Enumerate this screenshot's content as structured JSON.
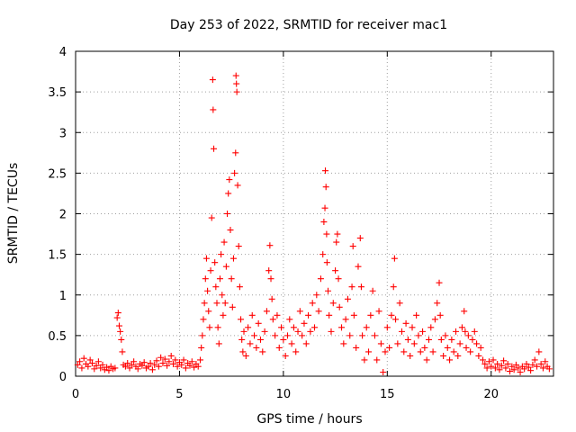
{
  "chart_data": {
    "type": "scatter",
    "title": "Day 253 of 2022, SRMTID for receiver mac1",
    "xlabel": "GPS time / hours",
    "ylabel": "SRMTID / TECUs",
    "xlim": [
      0,
      23
    ],
    "ylim": [
      0,
      4
    ],
    "xticks": [
      0,
      5,
      10,
      15,
      20
    ],
    "xtick_labels": [
      "0",
      "5",
      "10",
      "15",
      "20"
    ],
    "yticks": [
      0,
      0.5,
      1,
      1.5,
      2,
      2.5,
      3,
      3.5,
      4
    ],
    "ytick_labels": [
      "0",
      "0.5",
      "1",
      "1.5",
      "2",
      "2.5",
      "3",
      "3.5",
      "4"
    ],
    "grid": true,
    "marker": "+",
    "color": "#ff0000",
    "series": [
      {
        "name": "SRMTID",
        "points": [
          [
            0.1,
            0.14
          ],
          [
            0.2,
            0.18
          ],
          [
            0.3,
            0.1
          ],
          [
            0.4,
            0.22
          ],
          [
            0.5,
            0.15
          ],
          [
            0.6,
            0.12
          ],
          [
            0.7,
            0.2
          ],
          [
            0.8,
            0.16
          ],
          [
            0.9,
            0.09
          ],
          [
            1.0,
            0.13
          ],
          [
            1.1,
            0.18
          ],
          [
            1.2,
            0.1
          ],
          [
            1.3,
            0.14
          ],
          [
            1.4,
            0.08
          ],
          [
            1.5,
            0.11
          ],
          [
            1.6,
            0.07
          ],
          [
            1.7,
            0.12
          ],
          [
            1.8,
            0.09
          ],
          [
            1.9,
            0.1
          ],
          [
            2.0,
            0.72
          ],
          [
            2.05,
            0.78
          ],
          [
            2.1,
            0.62
          ],
          [
            2.15,
            0.55
          ],
          [
            2.2,
            0.45
          ],
          [
            2.25,
            0.3
          ],
          [
            2.3,
            0.14
          ],
          [
            2.4,
            0.12
          ],
          [
            2.5,
            0.16
          ],
          [
            2.6,
            0.1
          ],
          [
            2.7,
            0.14
          ],
          [
            2.8,
            0.18
          ],
          [
            2.9,
            0.12
          ],
          [
            3.0,
            0.09
          ],
          [
            3.1,
            0.15
          ],
          [
            3.2,
            0.13
          ],
          [
            3.3,
            0.17
          ],
          [
            3.4,
            0.1
          ],
          [
            3.5,
            0.12
          ],
          [
            3.6,
            0.16
          ],
          [
            3.7,
            0.08
          ],
          [
            3.8,
            0.14
          ],
          [
            3.9,
            0.19
          ],
          [
            4.0,
            0.12
          ],
          [
            4.1,
            0.23
          ],
          [
            4.2,
            0.16
          ],
          [
            4.3,
            0.21
          ],
          [
            4.4,
            0.13
          ],
          [
            4.5,
            0.18
          ],
          [
            4.6,
            0.25
          ],
          [
            4.7,
            0.15
          ],
          [
            4.8,
            0.2
          ],
          [
            4.9,
            0.12
          ],
          [
            5.0,
            0.17
          ],
          [
            5.1,
            0.14
          ],
          [
            5.2,
            0.2
          ],
          [
            5.3,
            0.1
          ],
          [
            5.4,
            0.16
          ],
          [
            5.5,
            0.13
          ],
          [
            5.6,
            0.18
          ],
          [
            5.7,
            0.11
          ],
          [
            5.8,
            0.15
          ],
          [
            5.9,
            0.12
          ],
          [
            6.0,
            0.2
          ],
          [
            6.05,
            0.35
          ],
          [
            6.1,
            0.5
          ],
          [
            6.15,
            0.7
          ],
          [
            6.2,
            0.9
          ],
          [
            6.25,
            1.2
          ],
          [
            6.3,
            1.45
          ],
          [
            6.35,
            1.05
          ],
          [
            6.4,
            0.8
          ],
          [
            6.45,
            0.6
          ],
          [
            6.5,
            1.3
          ],
          [
            6.55,
            1.95
          ],
          [
            6.6,
            3.65
          ],
          [
            6.62,
            3.28
          ],
          [
            6.65,
            2.8
          ],
          [
            6.7,
            1.4
          ],
          [
            6.75,
            1.1
          ],
          [
            6.8,
            0.9
          ],
          [
            6.85,
            0.6
          ],
          [
            6.9,
            0.4
          ],
          [
            6.95,
            1.2
          ],
          [
            7.0,
            1.5
          ],
          [
            7.05,
            1.0
          ],
          [
            7.1,
            0.75
          ],
          [
            7.15,
            1.65
          ],
          [
            7.2,
            0.9
          ],
          [
            7.25,
            1.35
          ],
          [
            7.3,
            2.0
          ],
          [
            7.35,
            2.25
          ],
          [
            7.4,
            2.42
          ],
          [
            7.45,
            1.8
          ],
          [
            7.5,
            1.2
          ],
          [
            7.55,
            0.85
          ],
          [
            7.6,
            1.45
          ],
          [
            7.65,
            2.5
          ],
          [
            7.7,
            2.75
          ],
          [
            7.72,
            3.7
          ],
          [
            7.74,
            3.6
          ],
          [
            7.76,
            3.5
          ],
          [
            7.8,
            2.35
          ],
          [
            7.85,
            1.6
          ],
          [
            7.9,
            1.1
          ],
          [
            7.95,
            0.7
          ],
          [
            8.0,
            0.45
          ],
          [
            8.05,
            0.3
          ],
          [
            8.1,
            0.55
          ],
          [
            8.2,
            0.25
          ],
          [
            8.3,
            0.6
          ],
          [
            8.4,
            0.4
          ],
          [
            8.5,
            0.75
          ],
          [
            8.6,
            0.5
          ],
          [
            8.7,
            0.35
          ],
          [
            8.8,
            0.65
          ],
          [
            8.9,
            0.45
          ],
          [
            9.0,
            0.3
          ],
          [
            9.1,
            0.55
          ],
          [
            9.2,
            0.8
          ],
          [
            9.3,
            1.3
          ],
          [
            9.35,
            1.61
          ],
          [
            9.4,
            1.2
          ],
          [
            9.45,
            0.95
          ],
          [
            9.5,
            0.7
          ],
          [
            9.6,
            0.5
          ],
          [
            9.7,
            0.75
          ],
          [
            9.8,
            0.35
          ],
          [
            9.9,
            0.6
          ],
          [
            10.0,
            0.45
          ],
          [
            10.1,
            0.25
          ],
          [
            10.2,
            0.5
          ],
          [
            10.3,
            0.7
          ],
          [
            10.4,
            0.4
          ],
          [
            10.5,
            0.6
          ],
          [
            10.6,
            0.3
          ],
          [
            10.7,
            0.55
          ],
          [
            10.8,
            0.8
          ],
          [
            10.9,
            0.5
          ],
          [
            11.0,
            0.65
          ],
          [
            11.1,
            0.4
          ],
          [
            11.2,
            0.75
          ],
          [
            11.3,
            0.55
          ],
          [
            11.4,
            0.9
          ],
          [
            11.5,
            0.6
          ],
          [
            11.6,
            1.0
          ],
          [
            11.7,
            0.8
          ],
          [
            11.8,
            1.2
          ],
          [
            11.9,
            1.5
          ],
          [
            11.95,
            1.9
          ],
          [
            12.0,
            2.07
          ],
          [
            12.02,
            2.53
          ],
          [
            12.05,
            2.33
          ],
          [
            12.08,
            1.75
          ],
          [
            12.1,
            1.4
          ],
          [
            12.15,
            1.05
          ],
          [
            12.2,
            0.75
          ],
          [
            12.3,
            0.55
          ],
          [
            12.4,
            0.9
          ],
          [
            12.5,
            1.3
          ],
          [
            12.55,
            1.65
          ],
          [
            12.6,
            1.75
          ],
          [
            12.65,
            1.2
          ],
          [
            12.7,
            0.85
          ],
          [
            12.8,
            0.6
          ],
          [
            12.9,
            0.4
          ],
          [
            13.0,
            0.7
          ],
          [
            13.1,
            0.95
          ],
          [
            13.2,
            0.5
          ],
          [
            13.3,
            1.1
          ],
          [
            13.35,
            1.6
          ],
          [
            13.4,
            0.75
          ],
          [
            13.5,
            0.35
          ],
          [
            13.6,
            1.35
          ],
          [
            13.7,
            1.7
          ],
          [
            13.75,
            1.1
          ],
          [
            13.8,
            0.5
          ],
          [
            13.9,
            0.2
          ],
          [
            14.0,
            0.6
          ],
          [
            14.1,
            0.3
          ],
          [
            14.2,
            0.75
          ],
          [
            14.3,
            1.05
          ],
          [
            14.4,
            0.5
          ],
          [
            14.5,
            0.2
          ],
          [
            14.6,
            0.8
          ],
          [
            14.7,
            0.4
          ],
          [
            14.8,
            0.05
          ],
          [
            14.9,
            0.3
          ],
          [
            15.0,
            0.6
          ],
          [
            15.1,
            0.35
          ],
          [
            15.2,
            0.75
          ],
          [
            15.3,
            1.1
          ],
          [
            15.35,
            1.45
          ],
          [
            15.4,
            0.7
          ],
          [
            15.5,
            0.4
          ],
          [
            15.6,
            0.9
          ],
          [
            15.7,
            0.55
          ],
          [
            15.8,
            0.3
          ],
          [
            15.9,
            0.65
          ],
          [
            16.0,
            0.45
          ],
          [
            16.1,
            0.25
          ],
          [
            16.2,
            0.6
          ],
          [
            16.3,
            0.4
          ],
          [
            16.4,
            0.75
          ],
          [
            16.5,
            0.5
          ],
          [
            16.6,
            0.3
          ],
          [
            16.7,
            0.55
          ],
          [
            16.8,
            0.35
          ],
          [
            16.9,
            0.2
          ],
          [
            17.0,
            0.45
          ],
          [
            17.1,
            0.6
          ],
          [
            17.2,
            0.3
          ],
          [
            17.3,
            0.7
          ],
          [
            17.4,
            0.9
          ],
          [
            17.5,
            1.15
          ],
          [
            17.55,
            0.75
          ],
          [
            17.6,
            0.45
          ],
          [
            17.7,
            0.25
          ],
          [
            17.8,
            0.5
          ],
          [
            17.9,
            0.35
          ],
          [
            18.0,
            0.2
          ],
          [
            18.1,
            0.45
          ],
          [
            18.2,
            0.3
          ],
          [
            18.3,
            0.55
          ],
          [
            18.4,
            0.25
          ],
          [
            18.5,
            0.4
          ],
          [
            18.6,
            0.6
          ],
          [
            18.7,
            0.8
          ],
          [
            18.75,
            0.55
          ],
          [
            18.8,
            0.35
          ],
          [
            18.9,
            0.5
          ],
          [
            19.0,
            0.3
          ],
          [
            19.1,
            0.45
          ],
          [
            19.2,
            0.55
          ],
          [
            19.3,
            0.4
          ],
          [
            19.4,
            0.25
          ],
          [
            19.5,
            0.35
          ],
          [
            19.6,
            0.2
          ],
          [
            19.7,
            0.15
          ],
          [
            19.8,
            0.1
          ],
          [
            19.9,
            0.18
          ],
          [
            20.0,
            0.12
          ],
          [
            20.1,
            0.2
          ],
          [
            20.2,
            0.1
          ],
          [
            20.3,
            0.15
          ],
          [
            20.4,
            0.08
          ],
          [
            20.5,
            0.13
          ],
          [
            20.6,
            0.19
          ],
          [
            20.7,
            0.1
          ],
          [
            20.8,
            0.15
          ],
          [
            20.9,
            0.06
          ],
          [
            21.0,
            0.12
          ],
          [
            21.1,
            0.08
          ],
          [
            21.2,
            0.14
          ],
          [
            21.3,
            0.1
          ],
          [
            21.4,
            0.05
          ],
          [
            21.5,
            0.12
          ],
          [
            21.6,
            0.09
          ],
          [
            21.7,
            0.15
          ],
          [
            21.8,
            0.11
          ],
          [
            21.9,
            0.07
          ],
          [
            22.0,
            0.14
          ],
          [
            22.1,
            0.2
          ],
          [
            22.2,
            0.12
          ],
          [
            22.3,
            0.3
          ],
          [
            22.4,
            0.15
          ],
          [
            22.5,
            0.1
          ],
          [
            22.6,
            0.18
          ],
          [
            22.7,
            0.12
          ],
          [
            22.8,
            0.09
          ]
        ]
      }
    ]
  }
}
